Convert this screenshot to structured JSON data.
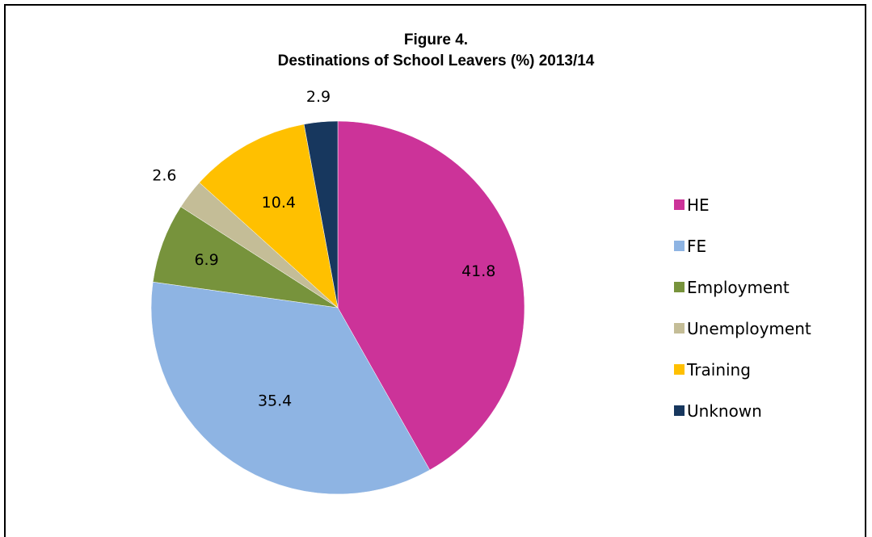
{
  "chart_data": {
    "type": "pie",
    "title": "Figure 4.",
    "subtitle": "Destinations of School Leavers  (%) 2013/14",
    "slices": [
      {
        "label": "HE",
        "value": 41.8,
        "color": "#CC3399"
      },
      {
        "label": "FE",
        "value": 35.4,
        "color": "#8EB4E3"
      },
      {
        "label": "Employment",
        "value": 6.9,
        "color": "#77933C"
      },
      {
        "label": "Unemployment",
        "value": 2.6,
        "color": "#C4BD97"
      },
      {
        "label": "Training",
        "value": 10.4,
        "color": "#FFC000"
      },
      {
        "label": "Unknown",
        "value": 2.9,
        "color": "#17375E"
      }
    ],
    "data_labels": [
      "41.8",
      "35.4",
      "6.9",
      "2.6",
      "10.4",
      "2.9"
    ],
    "legend_position": "right"
  }
}
